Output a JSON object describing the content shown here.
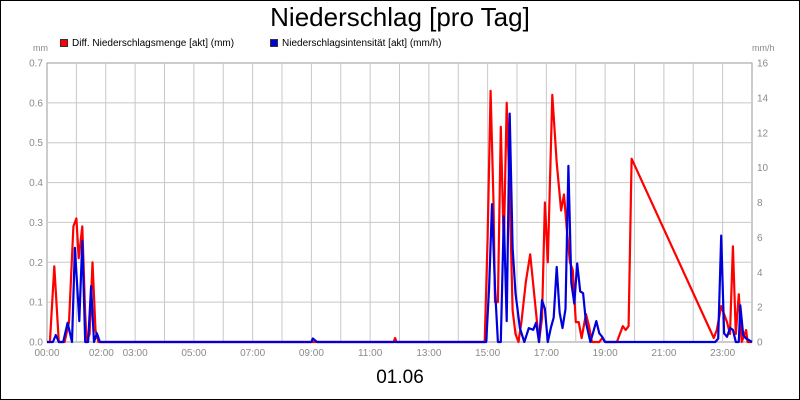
{
  "chart_data": {
    "type": "line",
    "title": "Niederschlag [pro Tag]",
    "xlabel": "01.06",
    "ylabel_left": "mm",
    "ylabel_right": "mm/h",
    "ylim_left": [
      0,
      0.7
    ],
    "ylim_right": [
      0,
      16
    ],
    "x_range_hours": [
      0,
      24
    ],
    "grid": true,
    "legend_position": "top-left",
    "x_ticks": [
      "00:00",
      "02:00",
      "03:00",
      "05:00",
      "07:00",
      "09:00",
      "11:00",
      "13:00",
      "15:00",
      "17:00",
      "19:00",
      "21:00",
      "23:00"
    ],
    "x_tick_hours": [
      0,
      1.85,
      3,
      5,
      7,
      9,
      11,
      13,
      15,
      17,
      19,
      21,
      23
    ],
    "y_ticks_left": [
      "0.0",
      "0.1",
      "0.2",
      "0.3",
      "0.4",
      "0.5",
      "0.6",
      "0.7"
    ],
    "y_ticks_right": [
      "0",
      "2",
      "4",
      "6",
      "8",
      "10",
      "12",
      "14",
      "16"
    ],
    "series": [
      {
        "name": "Diff. Niederschlagsmenge [akt] (mm)",
        "color": "#ff0000",
        "axis": "left",
        "x": [
          0,
          0.1,
          0.25,
          0.4,
          0.6,
          0.75,
          0.9,
          1.0,
          1.08,
          1.2,
          1.3,
          1.35,
          1.45,
          1.55,
          1.65,
          1.75,
          1.85,
          1.9,
          11.8,
          11.85,
          11.9,
          14.9,
          15.0,
          15.1,
          15.2,
          15.25,
          15.35,
          15.45,
          15.55,
          15.65,
          15.75,
          15.85,
          15.95,
          16.05,
          16.15,
          16.3,
          16.45,
          16.6,
          16.75,
          16.85,
          16.95,
          17.05,
          17.2,
          17.35,
          17.5,
          17.6,
          17.7,
          17.8,
          17.9,
          18.0,
          18.1,
          18.2,
          18.35,
          18.45,
          18.55,
          18.7,
          18.8,
          18.9,
          19.0,
          19.4,
          19.6,
          19.7,
          19.8,
          19.9,
          22.7,
          22.8,
          22.95,
          23.05,
          23.15,
          23.25,
          23.35,
          23.45,
          23.55,
          23.65,
          23.75,
          23.8,
          23.85,
          23.9,
          23.95,
          24.0
        ],
        "values": [
          0,
          0,
          0.19,
          0,
          0,
          0.05,
          0.29,
          0.31,
          0.21,
          0.29,
          0.07,
          0,
          0.02,
          0.2,
          0.03,
          0,
          0,
          0,
          0,
          0.01,
          0,
          0,
          0.26,
          0.63,
          0.35,
          0.1,
          0.1,
          0.54,
          0.24,
          0.6,
          0.37,
          0.08,
          0.02,
          0,
          0.05,
          0.15,
          0.22,
          0.11,
          0,
          0.06,
          0.35,
          0.2,
          0.62,
          0.45,
          0.33,
          0.37,
          0.28,
          0.2,
          0.18,
          0.05,
          0.05,
          0.01,
          0.07,
          0.04,
          0,
          0,
          0,
          0.01,
          0,
          0,
          0.04,
          0.03,
          0.04,
          0.46,
          0.01,
          0.03,
          0.09,
          0.07,
          0.05,
          0.02,
          0.24,
          0.02,
          0.12,
          0,
          0.02,
          0.03,
          0,
          0,
          0,
          0
        ]
      },
      {
        "name": "Niederschlagsintensität [akt] (mm/h)",
        "color": "#0000dd",
        "axis": "right",
        "x": [
          0,
          0.2,
          0.3,
          0.4,
          0.55,
          0.7,
          0.85,
          0.95,
          1.1,
          1.2,
          1.3,
          1.4,
          1.5,
          1.6,
          1.7,
          1.8,
          9.0,
          9.05,
          9.12,
          9.2,
          14.95,
          15.05,
          15.15,
          15.25,
          15.35,
          15.45,
          15.55,
          15.65,
          15.75,
          15.85,
          15.95,
          16.1,
          16.25,
          16.4,
          16.55,
          16.65,
          16.75,
          16.85,
          16.95,
          17.05,
          17.15,
          17.25,
          17.35,
          17.45,
          17.55,
          17.65,
          17.75,
          17.85,
          17.95,
          18.05,
          18.15,
          18.25,
          18.35,
          18.5,
          18.6,
          18.7,
          18.8,
          18.9,
          19.0,
          22.75,
          22.85,
          22.95,
          23.05,
          23.15,
          23.25,
          23.35,
          23.45,
          23.55,
          23.6,
          23.7,
          23.8,
          24.0
        ],
        "values": [
          0,
          0,
          0.4,
          0,
          0,
          1.1,
          0,
          5.4,
          1.2,
          5.8,
          0,
          0,
          3.2,
          0,
          0.5,
          0,
          0,
          0.2,
          0.1,
          0,
          0,
          3.1,
          7.9,
          3.1,
          0,
          0,
          7.2,
          1.2,
          13.1,
          5.4,
          2.8,
          0.8,
          0,
          0.8,
          0.7,
          1.1,
          0,
          2.4,
          1.9,
          0,
          0.8,
          1.4,
          4.3,
          1.7,
          0.8,
          1.9,
          10.1,
          3.4,
          2.2,
          4.5,
          2.9,
          2.8,
          1.1,
          0,
          0.6,
          1.2,
          0.5,
          0.3,
          0,
          0,
          0.2,
          6.1,
          0.5,
          0.3,
          0.8,
          0.7,
          0,
          0,
          2.1,
          0.4,
          0.2,
          0
        ]
      }
    ]
  }
}
